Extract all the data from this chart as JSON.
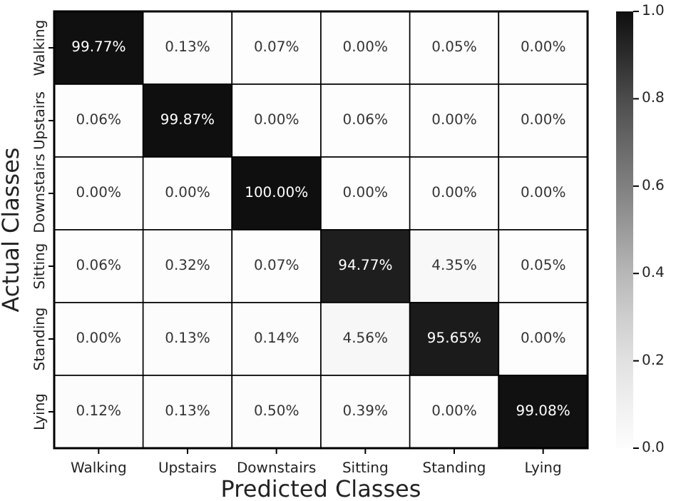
{
  "chart_data": {
    "type": "heatmap",
    "xlabel": "Predicted Classes",
    "ylabel": "Actual Classes",
    "categories": [
      "Walking",
      "Upstairs",
      "Downstairs",
      "Sitting",
      "Standing",
      "Lying"
    ],
    "y_categories": [
      "Walking",
      "Upstairs",
      "Downstairs",
      "Sitting",
      "Standing",
      "Lying"
    ],
    "cells": [
      [
        0.9977,
        0.0013,
        0.0007,
        0.0,
        0.0005,
        0.0
      ],
      [
        0.0006,
        0.9987,
        0.0,
        0.0006,
        0.0,
        0.0
      ],
      [
        0.0,
        0.0,
        1.0,
        0.0,
        0.0,
        0.0
      ],
      [
        0.0006,
        0.0032,
        0.0007,
        0.9477,
        0.0435,
        0.0005
      ],
      [
        0.0,
        0.0013,
        0.0014,
        0.0456,
        0.9565,
        0.0
      ],
      [
        0.0012,
        0.0013,
        0.005,
        0.0039,
        0.0,
        0.9908
      ]
    ],
    "cell_labels": [
      [
        "99.77%",
        "0.13%",
        "0.07%",
        "0.00%",
        "0.05%",
        "0.00%"
      ],
      [
        "0.06%",
        "99.87%",
        "0.00%",
        "0.06%",
        "0.00%",
        "0.00%"
      ],
      [
        "0.00%",
        "0.00%",
        "100.00%",
        "0.00%",
        "0.00%",
        "0.00%"
      ],
      [
        "0.06%",
        "0.32%",
        "0.07%",
        "94.77%",
        "4.35%",
        "0.05%"
      ],
      [
        "0.00%",
        "0.13%",
        "0.14%",
        "4.56%",
        "95.65%",
        "0.00%"
      ],
      [
        "0.12%",
        "0.13%",
        "0.50%",
        "0.39%",
        "0.00%",
        "99.08%"
      ]
    ],
    "clim": [
      0,
      1
    ],
    "cticks": [
      {
        "value": 0,
        "label": "0.0"
      },
      {
        "value": 0.2,
        "label": "0.2"
      },
      {
        "value": 0.4,
        "label": "0.4"
      },
      {
        "value": 0.6,
        "label": "0.6"
      },
      {
        "value": 0.8,
        "label": "0.8"
      },
      {
        "value": 1,
        "label": "1.0"
      }
    ]
  }
}
